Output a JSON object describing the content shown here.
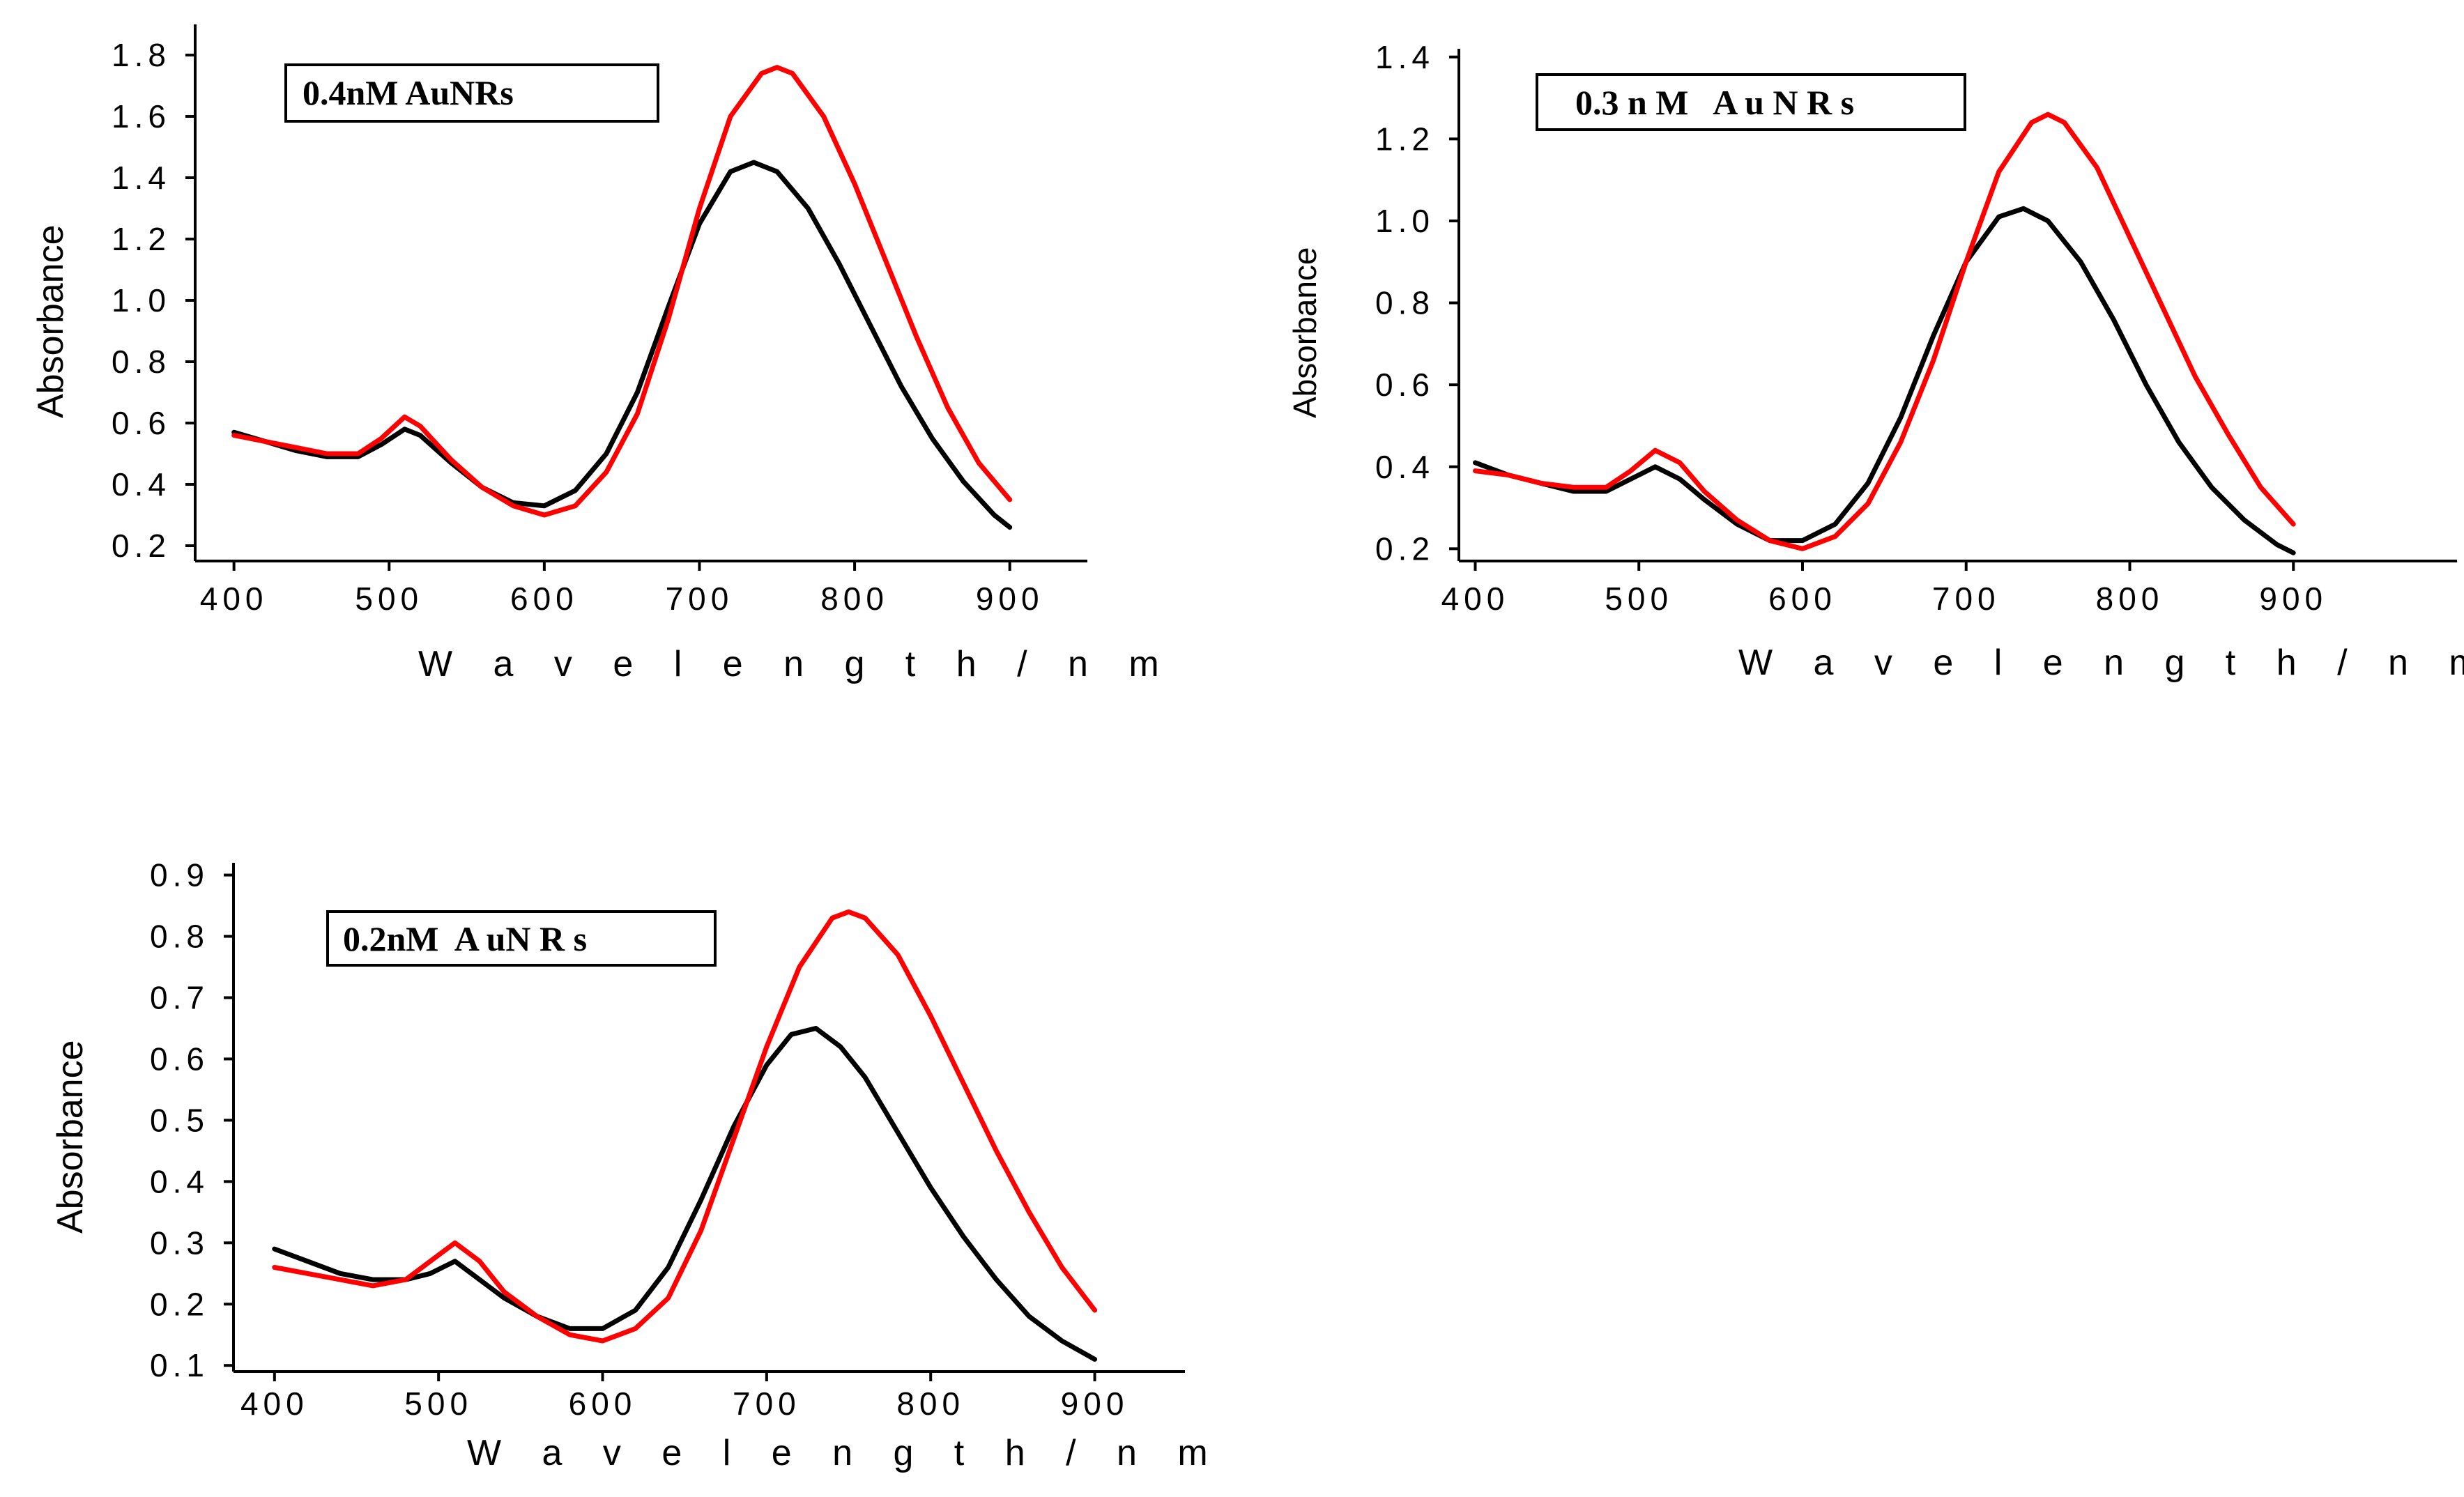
{
  "chart_data": [
    {
      "type": "line",
      "title": "",
      "annotation": "0.4nM AuNRs",
      "xlabel": "W a v e l e n g t h  /  n m",
      "ylabel": "Absorbance",
      "xlim": [
        375,
        950
      ],
      "ylim": [
        0.15,
        1.9
      ],
      "xticks": [
        400,
        500,
        600,
        700,
        800,
        900
      ],
      "yticks": [
        0.2,
        0.4,
        0.6,
        0.8,
        1.0,
        1.2,
        1.4,
        1.6,
        1.8
      ],
      "xtick_labels": [
        "400",
        "500",
        "600",
        "700",
        "800",
        "900"
      ],
      "ytick_labels": [
        "0.2",
        "0.4",
        "0.6",
        "0.8",
        "1.0",
        "1.2",
        "1.4",
        "1.6",
        "1.8"
      ],
      "grid": false,
      "series": [
        {
          "color": "#000000",
          "x": [
            400,
            420,
            440,
            460,
            480,
            495,
            510,
            520,
            540,
            560,
            580,
            600,
            620,
            640,
            660,
            680,
            700,
            720,
            735,
            750,
            770,
            790,
            810,
            830,
            850,
            870,
            890,
            900
          ],
          "y": [
            0.57,
            0.54,
            0.51,
            0.49,
            0.49,
            0.53,
            0.58,
            0.56,
            0.47,
            0.39,
            0.34,
            0.33,
            0.38,
            0.5,
            0.7,
            0.98,
            1.25,
            1.42,
            1.45,
            1.42,
            1.3,
            1.12,
            0.92,
            0.72,
            0.55,
            0.41,
            0.3,
            0.26
          ]
        },
        {
          "color": "#ff0000",
          "x": [
            400,
            420,
            440,
            460,
            480,
            495,
            510,
            520,
            540,
            560,
            580,
            600,
            620,
            640,
            660,
            680,
            700,
            720,
            740,
            750,
            760,
            780,
            800,
            820,
            840,
            860,
            880,
            900
          ],
          "y": [
            0.56,
            0.54,
            0.52,
            0.5,
            0.5,
            0.55,
            0.62,
            0.59,
            0.48,
            0.39,
            0.33,
            0.3,
            0.33,
            0.44,
            0.63,
            0.94,
            1.3,
            1.6,
            1.74,
            1.76,
            1.74,
            1.6,
            1.38,
            1.13,
            0.88,
            0.65,
            0.47,
            0.35
          ]
        }
      ]
    },
    {
      "type": "line",
      "title": "",
      "annotation": "0.3 n M   A u N R s",
      "xlabel": "W a v e l e n g t h  /  n m",
      "ylabel": "Absorbance",
      "xlim": [
        390,
        1000
      ],
      "ylim": [
        0.17,
        1.42
      ],
      "xticks": [
        400,
        500,
        600,
        700,
        800,
        900
      ],
      "yticks": [
        0.2,
        0.4,
        0.6,
        0.8,
        1.0,
        1.2,
        1.4
      ],
      "xtick_labels": [
        "400",
        "500",
        "600",
        "700",
        "800",
        "900"
      ],
      "ytick_labels": [
        "0.2",
        "0.4",
        "0.6",
        "0.8",
        "1.0",
        "1.2",
        "1.4"
      ],
      "grid": false,
      "series": [
        {
          "color": "#000000",
          "x": [
            400,
            420,
            440,
            460,
            480,
            495,
            510,
            525,
            540,
            560,
            580,
            600,
            620,
            640,
            660,
            680,
            700,
            720,
            735,
            750,
            770,
            790,
            810,
            830,
            850,
            870,
            890,
            900
          ],
          "y": [
            0.41,
            0.38,
            0.36,
            0.34,
            0.34,
            0.37,
            0.4,
            0.37,
            0.32,
            0.26,
            0.22,
            0.22,
            0.26,
            0.36,
            0.52,
            0.72,
            0.9,
            1.01,
            1.03,
            1.0,
            0.9,
            0.76,
            0.6,
            0.46,
            0.35,
            0.27,
            0.21,
            0.19
          ]
        },
        {
          "color": "#ff0000",
          "x": [
            400,
            420,
            440,
            460,
            480,
            495,
            510,
            525,
            540,
            560,
            580,
            600,
            620,
            640,
            660,
            680,
            700,
            720,
            740,
            750,
            760,
            780,
            800,
            820,
            840,
            860,
            880,
            900
          ],
          "y": [
            0.39,
            0.38,
            0.36,
            0.35,
            0.35,
            0.39,
            0.44,
            0.41,
            0.34,
            0.27,
            0.22,
            0.2,
            0.23,
            0.31,
            0.46,
            0.66,
            0.9,
            1.12,
            1.24,
            1.26,
            1.24,
            1.13,
            0.96,
            0.79,
            0.62,
            0.48,
            0.35,
            0.26
          ]
        }
      ]
    },
    {
      "type": "line",
      "title": "",
      "annotation": "0.2nM  A uN R s",
      "xlabel": "W a v e l e n g t h  /  n m",
      "ylabel": "Absorbance",
      "xlim": [
        375,
        955
      ],
      "ylim": [
        0.09,
        0.92
      ],
      "xticks": [
        400,
        500,
        600,
        700,
        800,
        900
      ],
      "yticks": [
        0.1,
        0.2,
        0.3,
        0.4,
        0.5,
        0.6,
        0.7,
        0.8,
        0.9
      ],
      "xtick_labels": [
        "400",
        "500",
        "600",
        "700",
        "800",
        "900"
      ],
      "ytick_labels": [
        "0.1",
        "0.2",
        "0.3",
        "0.4",
        "0.5",
        "0.6",
        "0.7",
        "0.8",
        "0.9"
      ],
      "grid": false,
      "series": [
        {
          "color": "#000000",
          "x": [
            400,
            420,
            440,
            460,
            480,
            495,
            510,
            525,
            540,
            560,
            580,
            600,
            620,
            640,
            660,
            680,
            700,
            715,
            730,
            745,
            760,
            780,
            800,
            820,
            840,
            860,
            880,
            900
          ],
          "y": [
            0.29,
            0.27,
            0.25,
            0.24,
            0.24,
            0.25,
            0.27,
            0.24,
            0.21,
            0.18,
            0.16,
            0.16,
            0.19,
            0.26,
            0.37,
            0.49,
            0.59,
            0.64,
            0.65,
            0.62,
            0.57,
            0.48,
            0.39,
            0.31,
            0.24,
            0.18,
            0.14,
            0.11
          ]
        },
        {
          "color": "#ff0000",
          "x": [
            400,
            420,
            440,
            460,
            480,
            495,
            510,
            525,
            540,
            560,
            580,
            600,
            620,
            640,
            660,
            680,
            700,
            720,
            740,
            750,
            760,
            780,
            800,
            820,
            840,
            860,
            880,
            900
          ],
          "y": [
            0.26,
            0.25,
            0.24,
            0.23,
            0.24,
            0.27,
            0.3,
            0.27,
            0.22,
            0.18,
            0.15,
            0.14,
            0.16,
            0.21,
            0.32,
            0.47,
            0.62,
            0.75,
            0.83,
            0.84,
            0.83,
            0.77,
            0.67,
            0.56,
            0.45,
            0.35,
            0.26,
            0.19
          ]
        }
      ]
    }
  ]
}
